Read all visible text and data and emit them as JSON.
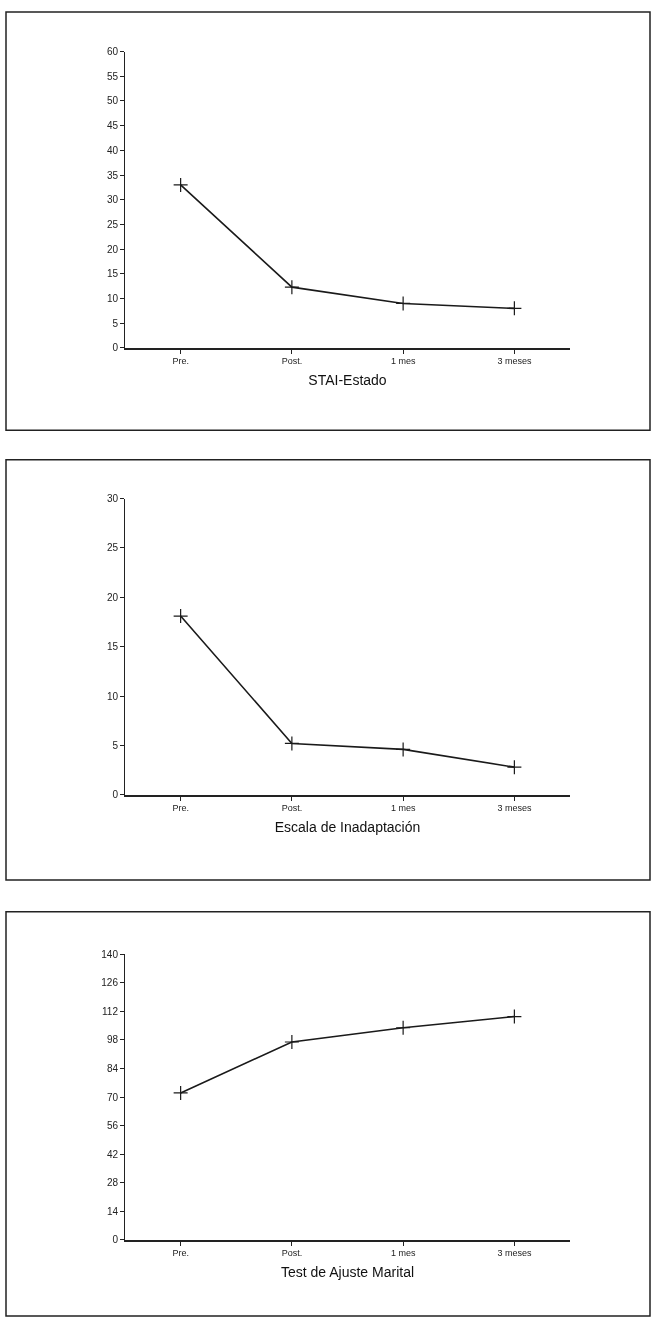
{
  "chart_data": [
    {
      "type": "line",
      "xlabel": "STAI-Estado",
      "categories": [
        "Pre.",
        "Post.",
        "1 mes",
        "3 meses"
      ],
      "values": [
        33,
        12.3,
        9,
        8
      ],
      "color": "#1a1a1a",
      "ylim": [
        0,
        60
      ],
      "yticks": [
        0,
        5,
        10,
        15,
        20,
        25,
        30,
        35,
        40,
        45,
        50,
        55,
        60
      ],
      "marker": "cross",
      "line_style": "solid"
    },
    {
      "type": "line",
      "xlabel": "Escala de Inadaptación",
      "categories": [
        "Pre.",
        "Post.",
        "1 mes",
        "3 meses"
      ],
      "values": [
        18.1,
        5.2,
        4.6,
        2.8
      ],
      "color": "#1a1a1a",
      "ylim": [
        0,
        30
      ],
      "yticks": [
        0,
        5,
        10,
        15,
        20,
        25,
        30
      ],
      "marker": "cross",
      "line_style": "solid"
    },
    {
      "type": "line",
      "xlabel": "Test de Ajuste Marital",
      "categories": [
        "Pre.",
        "Post.",
        "1 mes",
        "3 meses"
      ],
      "values": [
        72,
        97,
        104,
        109.5
      ],
      "color": "#1a1a1a",
      "ylim": [
        0,
        140
      ],
      "yticks": [
        0,
        14,
        28,
        42,
        56,
        70,
        84,
        98,
        112,
        126,
        140
      ],
      "marker": "cross",
      "line_style": "solid"
    }
  ]
}
